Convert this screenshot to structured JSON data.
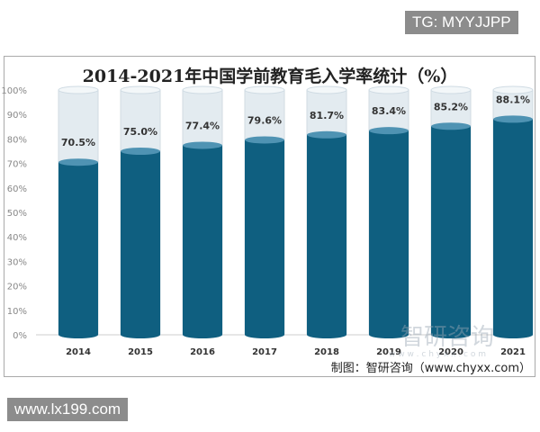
{
  "chart_data": {
    "type": "bar",
    "title": "2014-2021年中国学前教育毛入学率统计（%）",
    "categories": [
      "2014",
      "2015",
      "2016",
      "2017",
      "2018",
      "2019",
      "2020",
      "2021"
    ],
    "values": [
      70.5,
      75.0,
      77.4,
      79.6,
      81.7,
      83.4,
      85.2,
      88.1
    ],
    "data_labels": [
      "70.5%",
      "75.0%",
      "77.4%",
      "79.6%",
      "81.7%",
      "83.4%",
      "85.2%",
      "88.1%"
    ],
    "y_ticks": [
      "0%",
      "10%",
      "20%",
      "30%",
      "40%",
      "50%",
      "60%",
      "70%",
      "80%",
      "90%",
      "100%"
    ],
    "ylim": [
      0,
      100
    ],
    "grid": false,
    "colors": {
      "bar": "#0f5f80",
      "bar_top": "#4f93b3",
      "track": "#e3ebf0"
    }
  },
  "source": "制图：智研咨询（www.chyxx.com）",
  "watermarks": {
    "top_right": "TG: MYYJJPP",
    "bottom_left": "www.lx199.com",
    "logo": "智研咨询",
    "logo_url": "w w w . c h y x x . c o m"
  }
}
